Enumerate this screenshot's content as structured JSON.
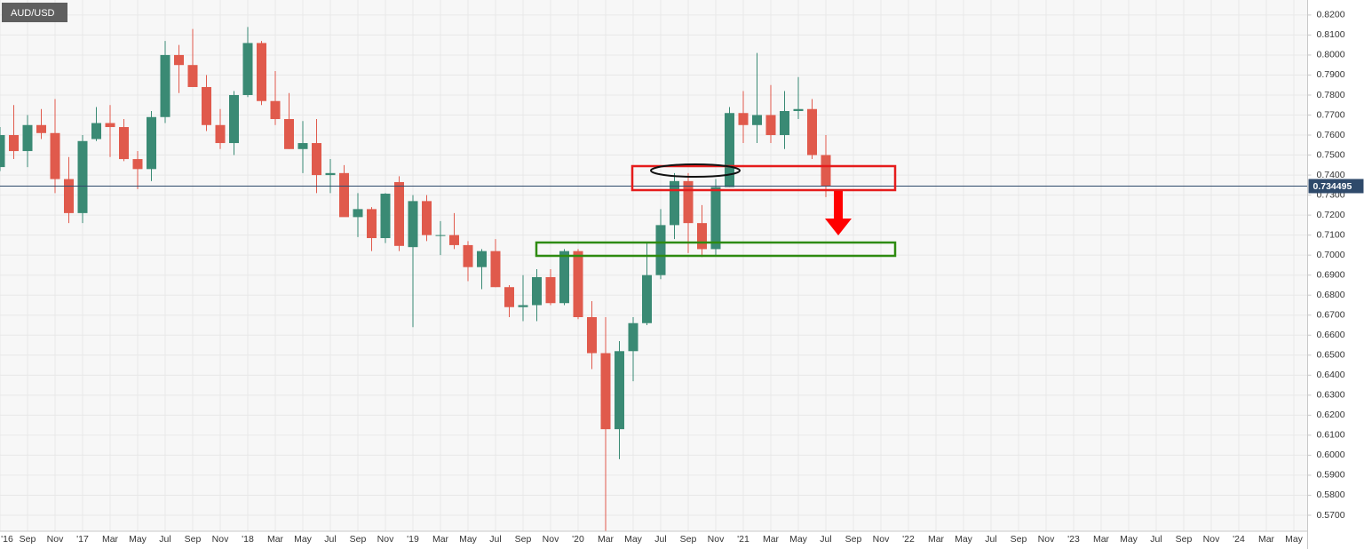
{
  "chart_data": {
    "type": "candlestick",
    "title": "AUD/USD",
    "up_color": "#3a8a74",
    "down_color": "#e05a4c",
    "grid": true,
    "x": [
      "2016-07",
      "2016-08",
      "2016-09",
      "2016-10",
      "2016-11",
      "2016-12",
      "2017-01",
      "2017-02",
      "2017-03",
      "2017-04",
      "2017-05",
      "2017-06",
      "2017-07",
      "2017-08",
      "2017-09",
      "2017-10",
      "2017-11",
      "2017-12",
      "2018-01",
      "2018-02",
      "2018-03",
      "2018-04",
      "2018-05",
      "2018-06",
      "2018-07",
      "2018-08",
      "2018-09",
      "2018-10",
      "2018-11",
      "2018-12",
      "2019-01",
      "2019-02",
      "2019-03",
      "2019-04",
      "2019-05",
      "2019-06",
      "2019-07",
      "2019-08",
      "2019-09",
      "2019-10",
      "2019-11",
      "2019-12",
      "2020-01",
      "2020-02",
      "2020-03",
      "2020-04",
      "2020-05",
      "2020-06",
      "2020-07",
      "2020-08",
      "2020-09",
      "2020-10",
      "2020-11",
      "2020-12",
      "2021-01",
      "2021-02",
      "2021-03",
      "2021-04",
      "2021-05",
      "2021-06",
      "2021-07"
    ],
    "open": [
      0.744,
      0.76,
      0.752,
      0.765,
      0.761,
      0.738,
      0.721,
      0.758,
      0.766,
      0.764,
      0.748,
      0.743,
      0.769,
      0.8,
      0.795,
      0.784,
      0.765,
      0.756,
      0.78,
      0.806,
      0.777,
      0.768,
      0.753,
      0.756,
      0.74,
      0.741,
      0.719,
      0.723,
      0.7085,
      0.7365,
      0.704,
      0.727,
      0.71,
      0.71,
      0.705,
      0.694,
      0.702,
      0.684,
      0.674,
      0.675,
      0.689,
      0.676,
      0.702,
      0.669,
      0.651,
      0.613,
      0.652,
      0.666,
      0.69,
      0.715,
      0.737,
      0.716,
      0.703,
      0.734,
      0.771,
      0.765,
      0.77,
      0.76,
      0.772,
      0.773,
      0.75
    ],
    "high": [
      0.764,
      0.775,
      0.77,
      0.773,
      0.778,
      0.749,
      0.76,
      0.774,
      0.775,
      0.768,
      0.752,
      0.772,
      0.807,
      0.805,
      0.813,
      0.79,
      0.773,
      0.782,
      0.814,
      0.807,
      0.792,
      0.781,
      0.767,
      0.768,
      0.748,
      0.745,
      0.731,
      0.724,
      0.731,
      0.7394,
      0.73,
      0.73,
      0.717,
      0.721,
      0.707,
      0.703,
      0.708,
      0.685,
      0.69,
      0.693,
      0.693,
      0.703,
      0.703,
      0.677,
      0.669,
      0.657,
      0.669,
      0.706,
      0.723,
      0.741,
      0.741,
      0.725,
      0.738,
      0.774,
      0.782,
      0.801,
      0.785,
      0.782,
      0.789,
      0.778,
      0.76
    ],
    "low": [
      0.742,
      0.748,
      0.744,
      0.758,
      0.731,
      0.716,
      0.716,
      0.757,
      0.749,
      0.747,
      0.733,
      0.737,
      0.766,
      0.781,
      0.784,
      0.762,
      0.753,
      0.75,
      0.779,
      0.775,
      0.765,
      0.753,
      0.741,
      0.731,
      0.731,
      0.72,
      0.709,
      0.702,
      0.706,
      0.702,
      0.664,
      0.707,
      0.7,
      0.703,
      0.687,
      0.683,
      0.684,
      0.669,
      0.667,
      0.667,
      0.675,
      0.675,
      0.668,
      0.643,
      0.562,
      0.598,
      0.637,
      0.665,
      0.688,
      0.708,
      0.701,
      0.699,
      0.7,
      0.734,
      0.756,
      0.756,
      0.756,
      0.753,
      0.768,
      0.748,
      0.729
    ],
    "close": [
      0.76,
      0.752,
      0.765,
      0.761,
      0.738,
      0.721,
      0.757,
      0.766,
      0.764,
      0.748,
      0.743,
      0.769,
      0.8,
      0.795,
      0.784,
      0.765,
      0.756,
      0.78,
      0.806,
      0.777,
      0.768,
      0.753,
      0.756,
      0.74,
      0.741,
      0.719,
      0.723,
      0.7085,
      0.7307,
      0.7046,
      0.727,
      0.71,
      0.71,
      0.705,
      0.694,
      0.702,
      0.684,
      0.674,
      0.675,
      0.689,
      0.676,
      0.702,
      0.669,
      0.651,
      0.613,
      0.652,
      0.666,
      0.69,
      0.715,
      0.737,
      0.716,
      0.703,
      0.734,
      0.771,
      0.765,
      0.77,
      0.76,
      0.772,
      0.773,
      0.75,
      0.734495
    ],
    "last_price": 0.734495,
    "xlim": [
      "2016-07",
      "2024-06"
    ],
    "xticks": [
      {
        "value": "2016-07",
        "label": "'16"
      },
      {
        "value": "2016-09",
        "label": "Sep"
      },
      {
        "value": "2016-11",
        "label": "Nov"
      },
      {
        "value": "2017-01",
        "label": "'17"
      },
      {
        "value": "2017-03",
        "label": "Mar"
      },
      {
        "value": "2017-05",
        "label": "May"
      },
      {
        "value": "2017-07",
        "label": "Jul"
      },
      {
        "value": "2017-09",
        "label": "Sep"
      },
      {
        "value": "2017-11",
        "label": "Nov"
      },
      {
        "value": "2018-01",
        "label": "'18"
      },
      {
        "value": "2018-03",
        "label": "Mar"
      },
      {
        "value": "2018-05",
        "label": "May"
      },
      {
        "value": "2018-07",
        "label": "Jul"
      },
      {
        "value": "2018-09",
        "label": "Sep"
      },
      {
        "value": "2018-11",
        "label": "Nov"
      },
      {
        "value": "2019-01",
        "label": "'19"
      },
      {
        "value": "2019-03",
        "label": "Mar"
      },
      {
        "value": "2019-05",
        "label": "May"
      },
      {
        "value": "2019-07",
        "label": "Jul"
      },
      {
        "value": "2019-09",
        "label": "Sep"
      },
      {
        "value": "2019-11",
        "label": "Nov"
      },
      {
        "value": "2020-01",
        "label": "'20"
      },
      {
        "value": "2020-03",
        "label": "Mar"
      },
      {
        "value": "2020-05",
        "label": "May"
      },
      {
        "value": "2020-07",
        "label": "Jul"
      },
      {
        "value": "2020-09",
        "label": "Sep"
      },
      {
        "value": "2020-11",
        "label": "Nov"
      },
      {
        "value": "2021-01",
        "label": "'21"
      },
      {
        "value": "2021-03",
        "label": "Mar"
      },
      {
        "value": "2021-05",
        "label": "May"
      },
      {
        "value": "2021-07",
        "label": "Jul"
      },
      {
        "value": "2021-09",
        "label": "Sep"
      },
      {
        "value": "2021-11",
        "label": "Nov"
      },
      {
        "value": "2022-01",
        "label": "'22"
      },
      {
        "value": "2022-03",
        "label": "Mar"
      },
      {
        "value": "2022-05",
        "label": "May"
      },
      {
        "value": "2022-07",
        "label": "Jul"
      },
      {
        "value": "2022-09",
        "label": "Sep"
      },
      {
        "value": "2022-11",
        "label": "Nov"
      },
      {
        "value": "2023-01",
        "label": "'23"
      },
      {
        "value": "2023-03",
        "label": "Mar"
      },
      {
        "value": "2023-05",
        "label": "May"
      },
      {
        "value": "2023-07",
        "label": "Jul"
      },
      {
        "value": "2023-09",
        "label": "Sep"
      },
      {
        "value": "2023-11",
        "label": "Nov"
      },
      {
        "value": "2024-01",
        "label": "'24"
      },
      {
        "value": "2024-03",
        "label": "Mar"
      },
      {
        "value": "2024-05",
        "label": "May"
      }
    ],
    "ylim": [
      0.562,
      0.8275
    ],
    "yticks": [
      {
        "value": 0.57,
        "label": "0.5700"
      },
      {
        "value": 0.58,
        "label": "0.5800"
      },
      {
        "value": 0.59,
        "label": "0.5900"
      },
      {
        "value": 0.6,
        "label": "0.6000"
      },
      {
        "value": 0.61,
        "label": "0.6100"
      },
      {
        "value": 0.62,
        "label": "0.6200"
      },
      {
        "value": 0.63,
        "label": "0.6300"
      },
      {
        "value": 0.64,
        "label": "0.6400"
      },
      {
        "value": 0.65,
        "label": "0.6500"
      },
      {
        "value": 0.66,
        "label": "0.6600"
      },
      {
        "value": 0.67,
        "label": "0.6700"
      },
      {
        "value": 0.68,
        "label": "0.6800"
      },
      {
        "value": 0.69,
        "label": "0.6900"
      },
      {
        "value": 0.7,
        "label": "0.7000"
      },
      {
        "value": 0.71,
        "label": "0.7100"
      },
      {
        "value": 0.72,
        "label": "0.7200"
      },
      {
        "value": 0.73,
        "label": "0.7300"
      },
      {
        "value": 0.74,
        "label": "0.7400"
      },
      {
        "value": 0.75,
        "label": "0.7500"
      },
      {
        "value": 0.76,
        "label": "0.7600"
      },
      {
        "value": 0.77,
        "label": "0.7700"
      },
      {
        "value": 0.78,
        "label": "0.7800"
      },
      {
        "value": 0.79,
        "label": "0.7900"
      },
      {
        "value": 0.8,
        "label": "0.8000"
      },
      {
        "value": 0.81,
        "label": "0.8100"
      },
      {
        "value": 0.82,
        "label": "0.8200"
      }
    ]
  }
}
